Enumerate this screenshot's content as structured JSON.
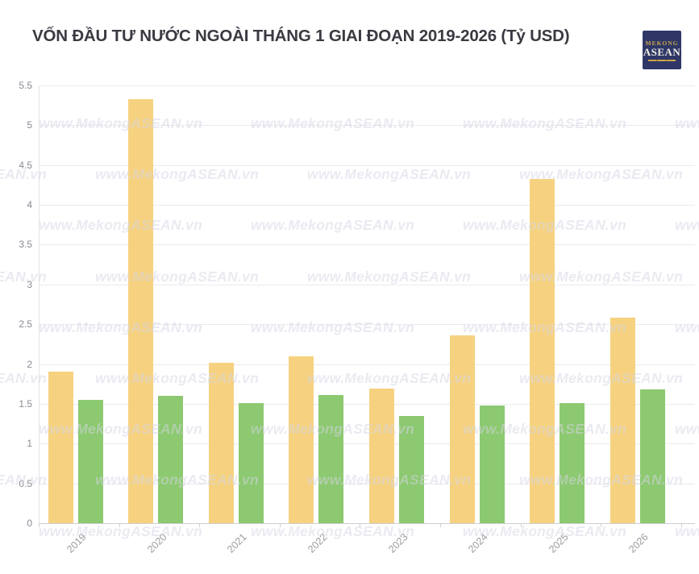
{
  "header": {
    "title": "VỐN ĐẦU TƯ NƯỚC NGOÀI THÁNG 1 GIAI ĐOẠN 2019-2026 (Tỷ USD)"
  },
  "logo": {
    "line1": "MEKONG",
    "line2": "ASEAN",
    "bg_color": "#2e3766",
    "accent_color": "#c9a44c"
  },
  "watermark": {
    "text": "www.MekongASEAN.vn"
  },
  "chart_data": {
    "type": "bar",
    "title": "VỐN ĐẦU TƯ NƯỚC NGOÀI THÁNG 1 GIAI ĐOẠN 2019-2026 (Tỷ USD)",
    "categories": [
      "2019",
      "2020",
      "2021",
      "2022",
      "2023",
      "2024",
      "2025",
      "2026"
    ],
    "series": [
      {
        "name": "yellow-series",
        "color": "#F6D280",
        "values": [
          1.9,
          5.33,
          2.02,
          2.1,
          1.69,
          2.36,
          4.33,
          2.58
        ]
      },
      {
        "name": "green-series",
        "color": "#8CC970",
        "values": [
          1.55,
          1.6,
          1.51,
          1.61,
          1.35,
          1.48,
          1.51,
          1.68
        ]
      }
    ],
    "xlabel": "",
    "ylabel": "",
    "ylim": [
      0,
      5.5
    ],
    "y_ticks": [
      "0",
      "0.5",
      "1",
      "1.5",
      "2",
      "2.5",
      "3",
      "3.5",
      "4",
      "4.5",
      "5",
      "5.5"
    ],
    "grid": true,
    "legend": "none",
    "x_label_rotation": -45
  }
}
